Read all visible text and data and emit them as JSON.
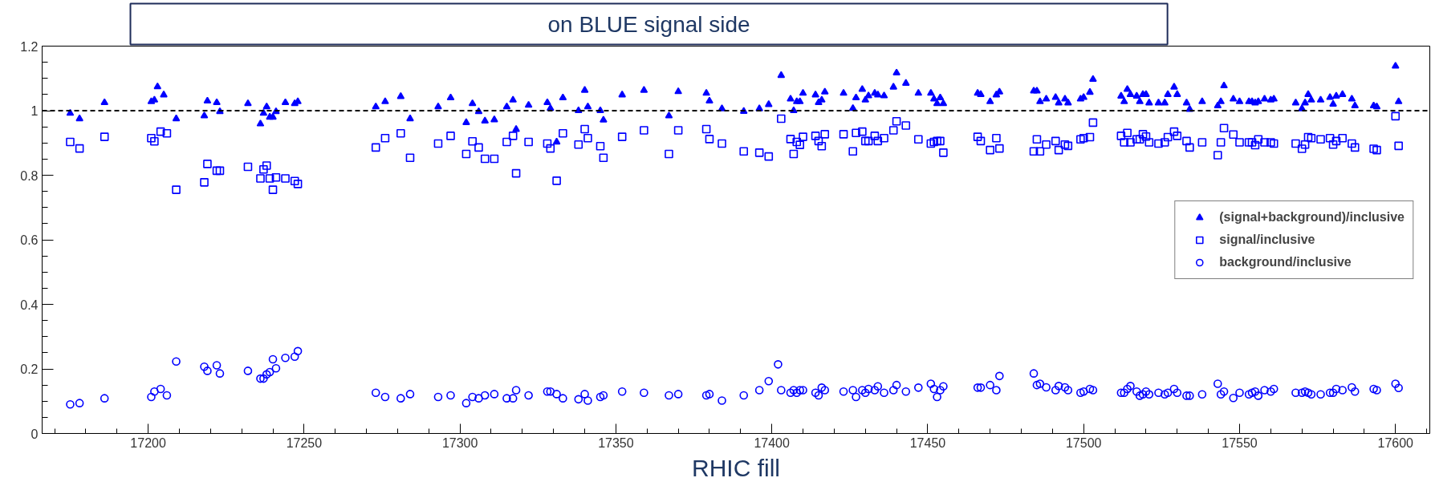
{
  "chart_data": {
    "type": "scatter",
    "title": "on BLUE signal side",
    "xlabel": "RHIC fill",
    "xlim": [
      17166,
      17611
    ],
    "xticks": [
      17200,
      17250,
      17300,
      17350,
      17400,
      17450,
      17500,
      17550,
      17600
    ],
    "ylim": [
      0,
      1.2
    ],
    "yticks": [
      0,
      0.2,
      0.4,
      0.6,
      0.8,
      1,
      1.2
    ],
    "grid": false,
    "legend": "right",
    "ref_lines": [
      {
        "axis": "y",
        "value": 1,
        "color": "#000000",
        "line_style": "dashed"
      }
    ],
    "series": [
      {
        "name": "(signal+background)/inclusive",
        "color": "#0000ff",
        "marker": "triangle",
        "x": [
          17175,
          17178,
          17186,
          17201,
          17202,
          17203,
          17205,
          17209,
          17218,
          17219,
          17222,
          17223,
          17232,
          17236,
          17237,
          17238,
          17239,
          17240,
          17241,
          17244,
          17247,
          17248,
          17273,
          17276,
          17281,
          17284,
          17293,
          17297,
          17302,
          17304,
          17306,
          17308,
          17311,
          17315,
          17317,
          17318,
          17322,
          17328,
          17329,
          17331,
          17333,
          17338,
          17340,
          17341,
          17345,
          17346,
          17352,
          17359,
          17367,
          17370,
          17379,
          17380,
          17384,
          17391,
          17396,
          17399,
          17403,
          17406,
          17407,
          17408,
          17409,
          17410,
          17414,
          17415,
          17416,
          17417,
          17423,
          17426,
          17427,
          17429,
          17430,
          17431,
          17433,
          17434,
          17436,
          17439,
          17440,
          17443,
          17447,
          17451,
          17452,
          17453,
          17454,
          17455,
          17466,
          17467,
          17470,
          17472,
          17473,
          17484,
          17485,
          17486,
          17488,
          17491,
          17492,
          17494,
          17495,
          17499,
          17500,
          17502,
          17503,
          17512,
          17513,
          17514,
          17515,
          17517,
          17518,
          17519,
          17520,
          17521,
          17524,
          17526,
          17527,
          17529,
          17530,
          17533,
          17534,
          17538,
          17543,
          17544,
          17545,
          17548,
          17550,
          17553,
          17554,
          17555,
          17556,
          17558,
          17560,
          17561,
          17568,
          17570,
          17571,
          17572,
          17573,
          17576,
          17579,
          17580,
          17581,
          17583,
          17586,
          17587,
          17593,
          17594,
          17600,
          17601
        ],
        "values": [
          0.992,
          0.975,
          1.025,
          1.028,
          1.033,
          1.074,
          1.049,
          0.975,
          0.984,
          1.03,
          1.025,
          0.997,
          1.022,
          0.959,
          0.992,
          1.012,
          0.98,
          0.98,
          0.997,
          1.025,
          1.022,
          1.028,
          1.012,
          1.028,
          1.044,
          0.975,
          1.012,
          1.04,
          0.963,
          1.022,
          0.997,
          0.968,
          0.972,
          1.012,
          1.033,
          0.942,
          1.017,
          1.025,
          1.007,
          0.903,
          1.04,
          1.0,
          1.063,
          1.012,
          1.0,
          0.971,
          1.049,
          1.063,
          0.984,
          1.059,
          1.054,
          1.03,
          1.006,
          0.998,
          1.006,
          1.019,
          1.109,
          1.036,
          1.0,
          1.028,
          1.028,
          1.054,
          1.049,
          1.025,
          1.033,
          1.058,
          1.054,
          1.007,
          1.04,
          1.066,
          1.033,
          1.046,
          1.054,
          1.049,
          1.046,
          1.073,
          1.117,
          1.085,
          1.054,
          1.054,
          1.036,
          1.022,
          1.04,
          1.022,
          1.054,
          1.05,
          1.028,
          1.049,
          1.058,
          1.061,
          1.061,
          1.028,
          1.036,
          1.041,
          1.024,
          1.036,
          1.024,
          1.036,
          1.041,
          1.057,
          1.097,
          1.045,
          1.028,
          1.066,
          1.05,
          1.045,
          1.028,
          1.05,
          1.05,
          1.024,
          1.024,
          1.024,
          1.05,
          1.073,
          1.05,
          1.024,
          1.004,
          1.028,
          1.015,
          1.028,
          1.077,
          1.036,
          1.028,
          1.028,
          1.028,
          1.024,
          1.028,
          1.036,
          1.033,
          1.036,
          1.024,
          1.006,
          1.024,
          1.05,
          1.033,
          1.033,
          1.041,
          1.02,
          1.045,
          1.05,
          1.036,
          1.015,
          1.015,
          1.012,
          1.138,
          1.028
        ]
      },
      {
        "name": "signal/inclusive",
        "color": "#0000ff",
        "marker": "square",
        "x": [
          17175,
          17178,
          17186,
          17201,
          17202,
          17204,
          17206,
          17209,
          17218,
          17219,
          17222,
          17223,
          17232,
          17236,
          17237,
          17238,
          17239,
          17240,
          17241,
          17244,
          17247,
          17248,
          17273,
          17276,
          17281,
          17284,
          17293,
          17297,
          17302,
          17304,
          17306,
          17308,
          17311,
          17315,
          17317,
          17318,
          17322,
          17328,
          17329,
          17331,
          17333,
          17338,
          17340,
          17341,
          17345,
          17346,
          17352,
          17359,
          17367,
          17370,
          17379,
          17380,
          17384,
          17391,
          17396,
          17399,
          17403,
          17406,
          17407,
          17408,
          17409,
          17410,
          17414,
          17415,
          17416,
          17417,
          17423,
          17426,
          17427,
          17429,
          17430,
          17431,
          17433,
          17434,
          17436,
          17439,
          17440,
          17443,
          17447,
          17451,
          17452,
          17453,
          17454,
          17455,
          17466,
          17467,
          17470,
          17472,
          17473,
          17484,
          17485,
          17486,
          17488,
          17491,
          17492,
          17494,
          17495,
          17499,
          17500,
          17502,
          17503,
          17512,
          17513,
          17514,
          17515,
          17517,
          17518,
          17519,
          17520,
          17521,
          17524,
          17526,
          17527,
          17529,
          17530,
          17533,
          17534,
          17538,
          17543,
          17544,
          17545,
          17548,
          17550,
          17553,
          17554,
          17555,
          17556,
          17558,
          17560,
          17561,
          17568,
          17570,
          17571,
          17572,
          17573,
          17576,
          17579,
          17580,
          17581,
          17583,
          17586,
          17587,
          17593,
          17594,
          17600,
          17601
        ],
        "values": [
          0.903,
          0.883,
          0.919,
          0.915,
          0.905,
          0.935,
          0.93,
          0.755,
          0.778,
          0.835,
          0.814,
          0.814,
          0.826,
          0.79,
          0.818,
          0.83,
          0.79,
          0.755,
          0.793,
          0.79,
          0.782,
          0.773,
          0.886,
          0.915,
          0.93,
          0.854,
          0.898,
          0.922,
          0.866,
          0.905,
          0.886,
          0.851,
          0.851,
          0.903,
          0.922,
          0.806,
          0.903,
          0.898,
          0.883,
          0.783,
          0.93,
          0.895,
          0.943,
          0.915,
          0.89,
          0.854,
          0.919,
          0.939,
          0.866,
          0.939,
          0.943,
          0.912,
          0.898,
          0.874,
          0.87,
          0.858,
          0.975,
          0.912,
          0.866,
          0.903,
          0.894,
          0.919,
          0.922,
          0.906,
          0.89,
          0.927,
          0.927,
          0.874,
          0.931,
          0.935,
          0.906,
          0.906,
          0.922,
          0.906,
          0.915,
          0.939,
          0.967,
          0.954,
          0.911,
          0.898,
          0.903,
          0.906,
          0.906,
          0.87,
          0.919,
          0.906,
          0.878,
          0.915,
          0.883,
          0.874,
          0.911,
          0.874,
          0.895,
          0.906,
          0.878,
          0.895,
          0.891,
          0.911,
          0.915,
          0.918,
          0.963,
          0.922,
          0.902,
          0.931,
          0.902,
          0.911,
          0.911,
          0.927,
          0.92,
          0.902,
          0.898,
          0.902,
          0.918,
          0.935,
          0.922,
          0.906,
          0.886,
          0.902,
          0.862,
          0.902,
          0.946,
          0.926,
          0.902,
          0.902,
          0.902,
          0.893,
          0.911,
          0.902,
          0.902,
          0.898,
          0.898,
          0.882,
          0.895,
          0.918,
          0.915,
          0.911,
          0.915,
          0.895,
          0.906,
          0.915,
          0.898,
          0.886,
          0.882,
          0.878,
          0.983,
          0.891
        ]
      },
      {
        "name": "background/inclusive",
        "color": "#0000ff",
        "marker": "circle",
        "x": [
          17175,
          17178,
          17186,
          17201,
          17202,
          17204,
          17206,
          17209,
          17218,
          17219,
          17222,
          17223,
          17232,
          17236,
          17237,
          17238,
          17239,
          17240,
          17241,
          17244,
          17247,
          17248,
          17273,
          17276,
          17281,
          17284,
          17293,
          17297,
          17302,
          17304,
          17306,
          17308,
          17311,
          17315,
          17317,
          17318,
          17322,
          17328,
          17329,
          17331,
          17333,
          17338,
          17340,
          17341,
          17345,
          17346,
          17352,
          17359,
          17367,
          17370,
          17379,
          17380,
          17384,
          17391,
          17396,
          17399,
          17402,
          17403,
          17406,
          17407,
          17408,
          17409,
          17410,
          17414,
          17415,
          17416,
          17417,
          17423,
          17426,
          17427,
          17429,
          17430,
          17431,
          17433,
          17434,
          17436,
          17439,
          17440,
          17443,
          17447,
          17451,
          17452,
          17453,
          17454,
          17455,
          17466,
          17467,
          17470,
          17472,
          17473,
          17484,
          17485,
          17486,
          17488,
          17491,
          17492,
          17494,
          17495,
          17499,
          17500,
          17502,
          17503,
          17512,
          17513,
          17514,
          17515,
          17517,
          17518,
          17519,
          17520,
          17521,
          17524,
          17526,
          17527,
          17529,
          17530,
          17533,
          17534,
          17538,
          17543,
          17544,
          17545,
          17548,
          17550,
          17553,
          17554,
          17555,
          17556,
          17558,
          17560,
          17561,
          17568,
          17570,
          17571,
          17572,
          17573,
          17576,
          17579,
          17580,
          17581,
          17583,
          17586,
          17587,
          17593,
          17594,
          17600,
          17601
        ],
        "values": [
          0.09,
          0.094,
          0.109,
          0.113,
          0.13,
          0.138,
          0.118,
          0.223,
          0.207,
          0.194,
          0.211,
          0.186,
          0.194,
          0.17,
          0.17,
          0.183,
          0.19,
          0.23,
          0.202,
          0.234,
          0.238,
          0.255,
          0.126,
          0.113,
          0.109,
          0.122,
          0.113,
          0.118,
          0.094,
          0.113,
          0.109,
          0.118,
          0.122,
          0.109,
          0.109,
          0.134,
          0.118,
          0.13,
          0.13,
          0.122,
          0.109,
          0.106,
          0.122,
          0.102,
          0.113,
          0.118,
          0.13,
          0.126,
          0.118,
          0.122,
          0.118,
          0.122,
          0.102,
          0.118,
          0.134,
          0.162,
          0.214,
          0.134,
          0.126,
          0.134,
          0.126,
          0.134,
          0.134,
          0.126,
          0.118,
          0.142,
          0.134,
          0.13,
          0.134,
          0.113,
          0.134,
          0.126,
          0.138,
          0.134,
          0.146,
          0.126,
          0.134,
          0.15,
          0.13,
          0.142,
          0.154,
          0.138,
          0.113,
          0.134,
          0.146,
          0.142,
          0.142,
          0.15,
          0.134,
          0.178,
          0.186,
          0.15,
          0.154,
          0.143,
          0.134,
          0.147,
          0.143,
          0.134,
          0.126,
          0.13,
          0.138,
          0.134,
          0.126,
          0.126,
          0.138,
          0.147,
          0.13,
          0.117,
          0.121,
          0.13,
          0.121,
          0.126,
          0.121,
          0.126,
          0.138,
          0.126,
          0.117,
          0.117,
          0.121,
          0.154,
          0.121,
          0.13,
          0.11,
          0.126,
          0.121,
          0.126,
          0.13,
          0.117,
          0.134,
          0.13,
          0.138,
          0.126,
          0.126,
          0.13,
          0.126,
          0.121,
          0.121,
          0.126,
          0.126,
          0.138,
          0.134,
          0.143,
          0.13,
          0.138,
          0.134,
          0.154,
          0.141
        ]
      }
    ]
  }
}
